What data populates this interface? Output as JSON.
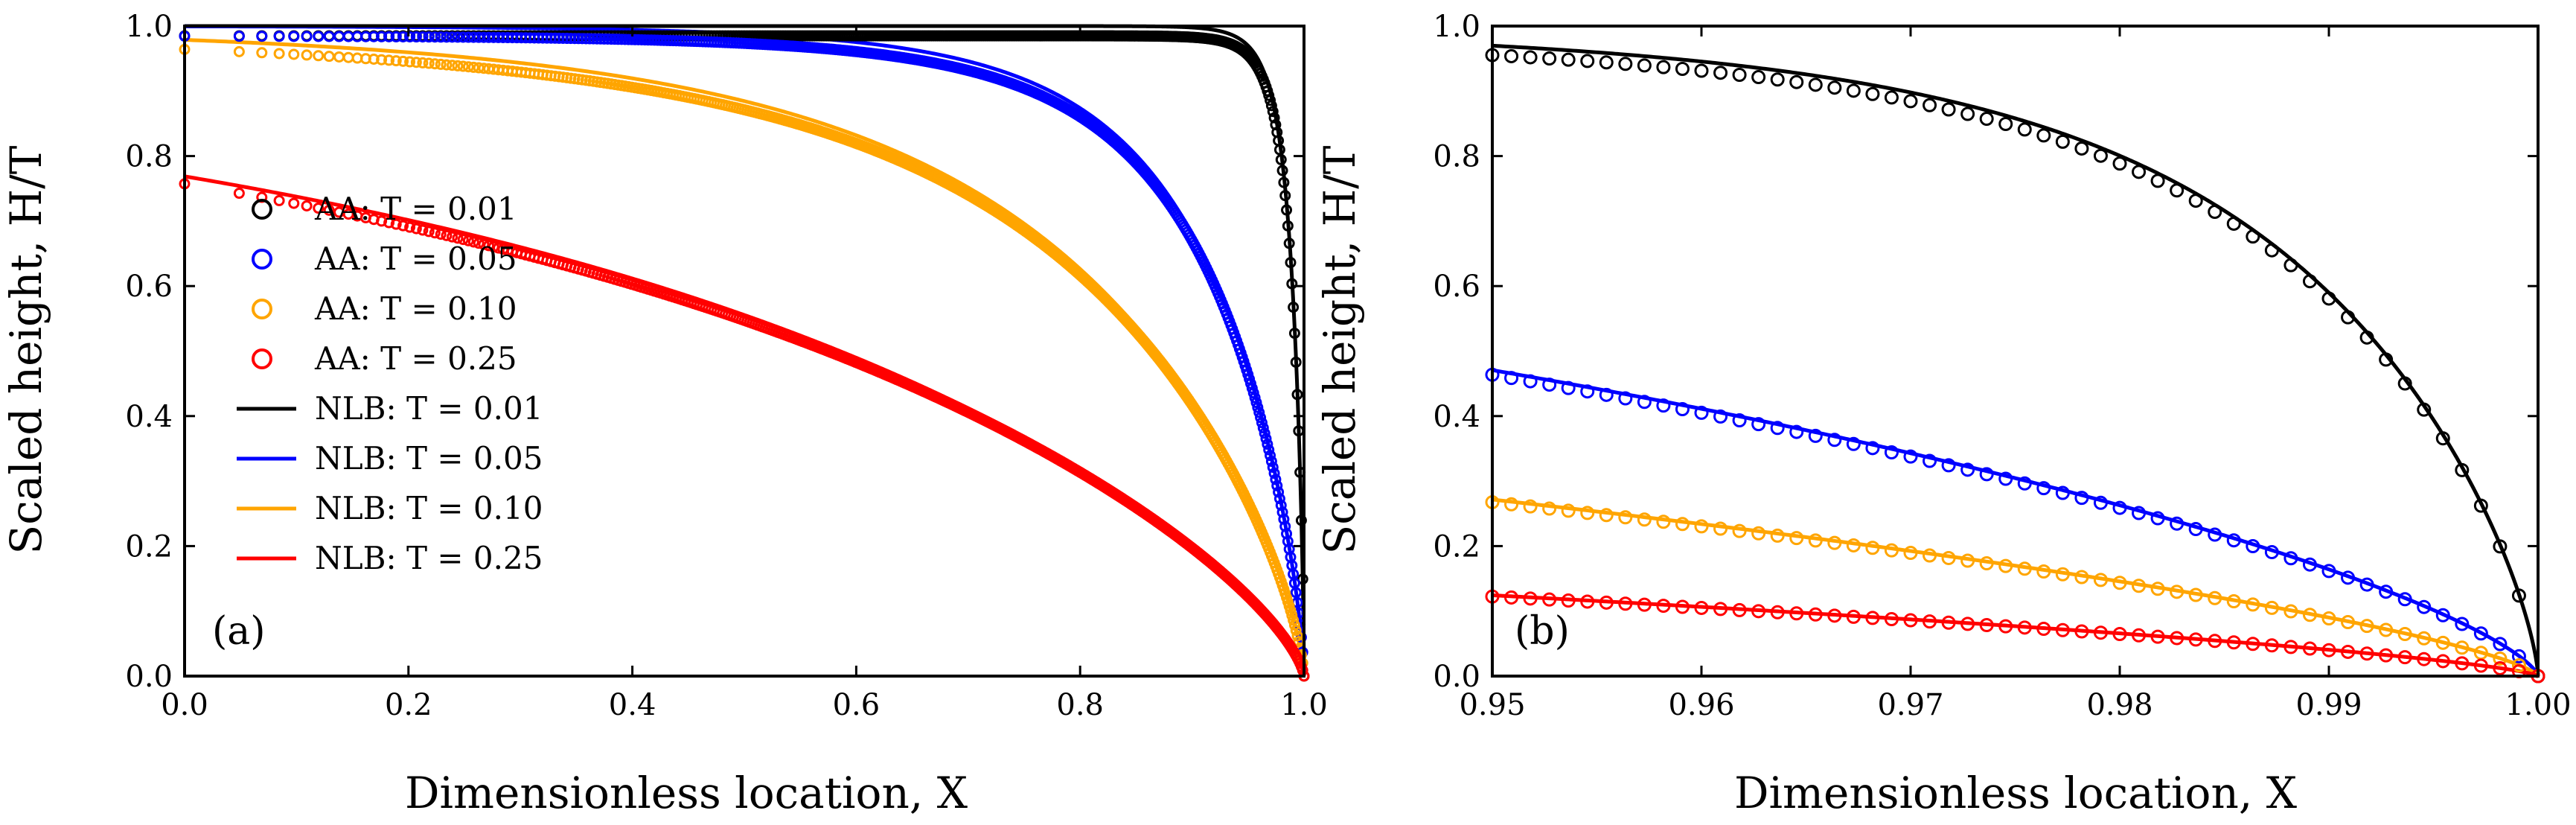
{
  "chart_data": [
    {
      "type": "line",
      "panel_label": "(a)",
      "xlabel": "Dimensionless location, X",
      "ylabel": "Scaled height, H/T",
      "xlim": [
        0.0,
        1.0
      ],
      "ylim": [
        0.0,
        1.0
      ],
      "xticks": [
        "0.0",
        "0.2",
        "0.4",
        "0.6",
        "0.8",
        "1.0"
      ],
      "yticks": [
        "0.0",
        "0.2",
        "0.4",
        "0.6",
        "0.8",
        "1.0"
      ],
      "legend_position": "center-left",
      "series": [
        {
          "name": "AA: T = 0.01",
          "style": "markers",
          "color": "#000000",
          "T": 0.01
        },
        {
          "name": "AA: T = 0.05",
          "style": "markers",
          "color": "#0000ff",
          "T": 0.05
        },
        {
          "name": "AA: T = 0.10",
          "style": "markers",
          "color": "#ffa500",
          "T": 0.1
        },
        {
          "name": "AA: T = 0.25",
          "style": "markers",
          "color": "#ff0000",
          "T": 0.25
        },
        {
          "name": "NLB: T = 0.01",
          "style": "line",
          "color": "#000000",
          "T": 0.01
        },
        {
          "name": "NLB: T = 0.05",
          "style": "line",
          "color": "#0000ff",
          "T": 0.05
        },
        {
          "name": "NLB: T = 0.10",
          "style": "line",
          "color": "#ffa500",
          "T": 0.1
        },
        {
          "name": "NLB: T = 0.25",
          "style": "line",
          "color": "#ff0000",
          "T": 0.25
        }
      ]
    },
    {
      "type": "line",
      "panel_label": "(b)",
      "xlabel": "Dimensionless location, X",
      "ylabel": "Scaled height, H/T",
      "xlim": [
        0.95,
        1.0
      ],
      "ylim": [
        0.0,
        1.0
      ],
      "xticks": [
        "0.95",
        "0.96",
        "0.97",
        "0.98",
        "0.99",
        "1.00"
      ],
      "yticks": [
        "0.0",
        "0.2",
        "0.4",
        "0.6",
        "0.8",
        "1.0"
      ],
      "series": [
        {
          "name": "AA: T = 0.01",
          "style": "markers",
          "color": "#000000",
          "T": 0.01
        },
        {
          "name": "AA: T = 0.05",
          "style": "markers",
          "color": "#0000ff",
          "T": 0.05
        },
        {
          "name": "AA: T = 0.10",
          "style": "markers",
          "color": "#ffa500",
          "T": 0.1
        },
        {
          "name": "AA: T = 0.25",
          "style": "markers",
          "color": "#ff0000",
          "T": 0.25
        },
        {
          "name": "NLB: T = 0.01",
          "style": "line",
          "color": "#000000",
          "T": 0.01
        },
        {
          "name": "NLB: T = 0.05",
          "style": "line",
          "color": "#0000ff",
          "T": 0.05
        },
        {
          "name": "NLB: T = 0.10",
          "style": "line",
          "color": "#ffa500",
          "T": 0.1
        },
        {
          "name": "NLB: T = 0.25",
          "style": "line",
          "color": "#ff0000",
          "T": 0.25
        }
      ]
    }
  ]
}
